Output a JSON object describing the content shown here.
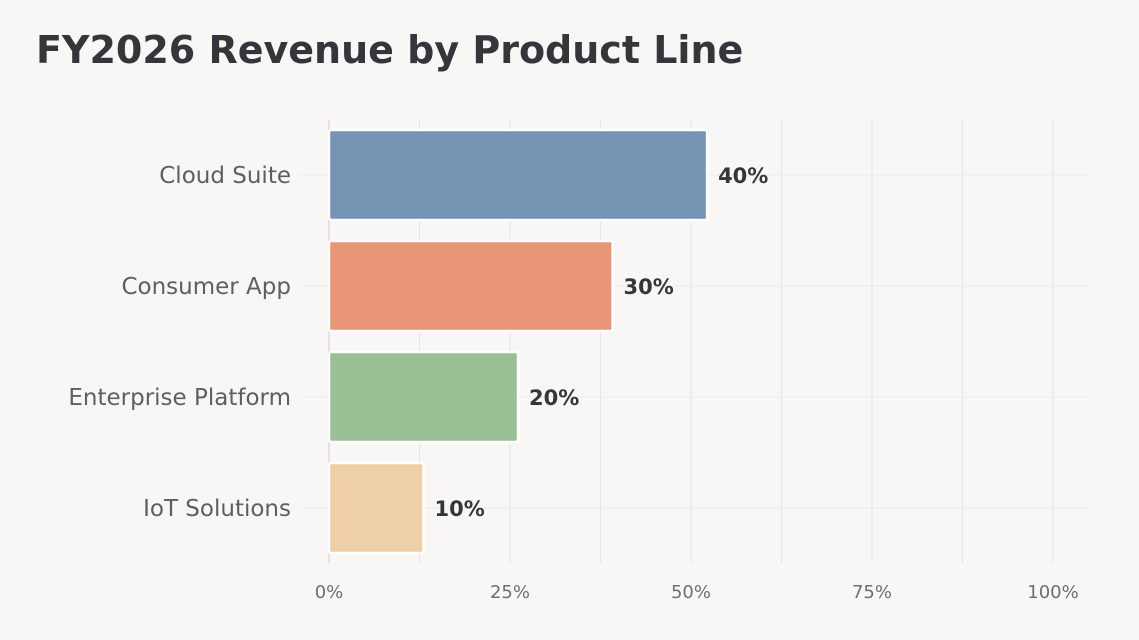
{
  "chart_data": {
    "type": "bar",
    "orientation": "horizontal",
    "title": "FY2026 Revenue by Product Line",
    "categories": [
      "Cloud Suite",
      "Consumer App",
      "Enterprise Platform",
      "IoT Solutions"
    ],
    "values": [
      40,
      30,
      20,
      10
    ],
    "value_labels": [
      "40%",
      "30%",
      "20%",
      "10%"
    ],
    "colors": [
      "#7594b3",
      "#e89677",
      "#9bbf95",
      "#eecfa7"
    ],
    "xlim": [
      0,
      100
    ],
    "x_ticks": [
      0,
      25,
      50,
      75,
      100
    ],
    "x_tick_labels": [
      "0%",
      "25%",
      "50%",
      "75%",
      "100%"
    ],
    "xlabel": "",
    "ylabel": "",
    "grid": true,
    "legend": "none"
  }
}
